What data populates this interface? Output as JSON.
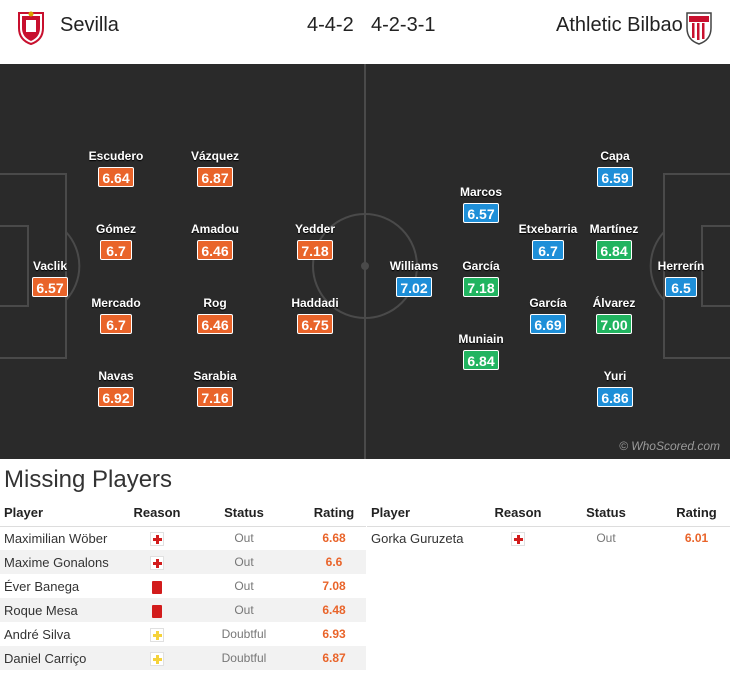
{
  "header": {
    "home_team": "Sevilla",
    "away_team": "Athletic Bilbao",
    "home_formation": "4-4-2",
    "away_formation": "4-2-3-1"
  },
  "home_players": [
    {
      "name": "Vaclik",
      "rating": "6.57",
      "color": "orange"
    },
    {
      "name": "Escudero",
      "rating": "6.64",
      "color": "orange"
    },
    {
      "name": "Gómez",
      "rating": "6.7",
      "color": "orange"
    },
    {
      "name": "Mercado",
      "rating": "6.7",
      "color": "orange"
    },
    {
      "name": "Navas",
      "rating": "6.92",
      "color": "orange"
    },
    {
      "name": "Vázquez",
      "rating": "6.87",
      "color": "orange"
    },
    {
      "name": "Amadou",
      "rating": "6.46",
      "color": "orange"
    },
    {
      "name": "Rog",
      "rating": "6.46",
      "color": "orange"
    },
    {
      "name": "Sarabia",
      "rating": "7.16",
      "color": "orange"
    },
    {
      "name": "Yedder",
      "rating": "7.18",
      "color": "orange"
    },
    {
      "name": "Haddadi",
      "rating": "6.75",
      "color": "orange"
    }
  ],
  "away_players": [
    {
      "name": "Herrerín",
      "rating": "6.5",
      "color": "blue"
    },
    {
      "name": "Capa",
      "rating": "6.59",
      "color": "blue"
    },
    {
      "name": "Martínez",
      "rating": "6.84",
      "color": "green"
    },
    {
      "name": "Álvarez",
      "rating": "7.00",
      "color": "green"
    },
    {
      "name": "Yuri",
      "rating": "6.86",
      "color": "blue"
    },
    {
      "name": "Etxebarria",
      "rating": "6.7",
      "color": "blue"
    },
    {
      "name": "García",
      "rating": "6.69",
      "color": "blue"
    },
    {
      "name": "Marcos",
      "rating": "6.57",
      "color": "blue"
    },
    {
      "name": "García",
      "rating": "7.18",
      "color": "green"
    },
    {
      "name": "Muniain",
      "rating": "6.84",
      "color": "green"
    },
    {
      "name": "Williams",
      "rating": "7.02",
      "color": "blue"
    }
  ],
  "credit": "© WhoScored.com",
  "missing": {
    "title": "Missing Players",
    "columns": [
      "Player",
      "Reason",
      "Status",
      "Rating"
    ],
    "home": [
      {
        "player": "Maximilian Wöber",
        "reason": "injury",
        "status": "Out",
        "rating": "6.68"
      },
      {
        "player": "Maxime Gonalons",
        "reason": "injury",
        "status": "Out",
        "rating": "6.6"
      },
      {
        "player": "Éver Banega",
        "reason": "red-card",
        "status": "Out",
        "rating": "7.08"
      },
      {
        "player": "Roque Mesa",
        "reason": "red-card",
        "status": "Out",
        "rating": "6.48"
      },
      {
        "player": "André Silva",
        "reason": "doubtful-injury",
        "status": "Doubtful",
        "rating": "6.93"
      },
      {
        "player": "Daniel Carriço",
        "reason": "doubtful-injury",
        "status": "Doubtful",
        "rating": "6.87"
      }
    ],
    "away": [
      {
        "player": "Gorka Guruzeta",
        "reason": "injury",
        "status": "Out",
        "rating": "6.01"
      }
    ]
  },
  "colors": {
    "rating_orange": "#e9642a",
    "rating_blue": "#1e8fd8",
    "rating_green": "#21b460",
    "pitch": "#2a2a2a"
  }
}
